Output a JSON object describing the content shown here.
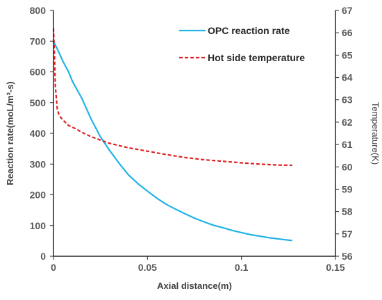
{
  "chart_data": {
    "type": "line",
    "xlabel": "Axial distance(m)",
    "ylabel": "Reaction rate(moL/m³-s)",
    "y2label": "Temperature(K)",
    "xlim": [
      0,
      0.15
    ],
    "ylim": [
      0,
      800
    ],
    "y2lim": [
      56,
      67
    ],
    "xticks": [
      0,
      0.05,
      0.1,
      0.15
    ],
    "xtick_labels": [
      "0",
      "0.05",
      "0.1",
      "0.15"
    ],
    "yticks": [
      0,
      100,
      200,
      300,
      400,
      500,
      600,
      700,
      800
    ],
    "ytick_labels": [
      "0",
      "100",
      "200",
      "300",
      "400",
      "500",
      "600",
      "700",
      "800"
    ],
    "y2ticks": [
      56,
      57,
      58,
      59,
      60,
      61,
      62,
      63,
      64,
      65,
      66,
      67
    ],
    "y2tick_labels": [
      "56",
      "57",
      "58",
      "59",
      "60",
      "61",
      "62",
      "63",
      "64",
      "65",
      "66",
      "67"
    ],
    "grid": false,
    "legend_position": "top-right",
    "series": [
      {
        "name": "OPC reaction rate",
        "axis": "left",
        "color": "#1fb3e6",
        "style": "solid",
        "x": [
          0,
          0.002,
          0.005,
          0.008,
          0.01,
          0.015,
          0.02,
          0.025,
          0.03,
          0.035,
          0.04,
          0.045,
          0.05,
          0.055,
          0.06,
          0.065,
          0.07,
          0.075,
          0.08,
          0.085,
          0.09,
          0.095,
          0.1,
          0.105,
          0.11,
          0.115,
          0.12,
          0.127
        ],
        "y": [
          700,
          675,
          635,
          600,
          570,
          515,
          447,
          388,
          343,
          302,
          264,
          236,
          212,
          189,
          169,
          153,
          138,
          124,
          112,
          101,
          93,
          84,
          77,
          70,
          65,
          60,
          56,
          51
        ]
      },
      {
        "name": "Hot side temperature",
        "axis": "right",
        "color": "#e02020",
        "style": "dashed",
        "x": [
          0,
          0.0005,
          0.001,
          0.002,
          0.003,
          0.005,
          0.008,
          0.012,
          0.015,
          0.02,
          0.025,
          0.03,
          0.035,
          0.04,
          0.05,
          0.06,
          0.07,
          0.08,
          0.09,
          0.1,
          0.11,
          0.12,
          0.127
        ],
        "y": [
          66.2,
          65.0,
          63.6,
          62.6,
          62.3,
          62.1,
          61.85,
          61.7,
          61.55,
          61.35,
          61.2,
          61.05,
          60.95,
          60.85,
          60.7,
          60.55,
          60.42,
          60.32,
          60.25,
          60.18,
          60.12,
          60.08,
          60.07
        ]
      }
    ]
  }
}
